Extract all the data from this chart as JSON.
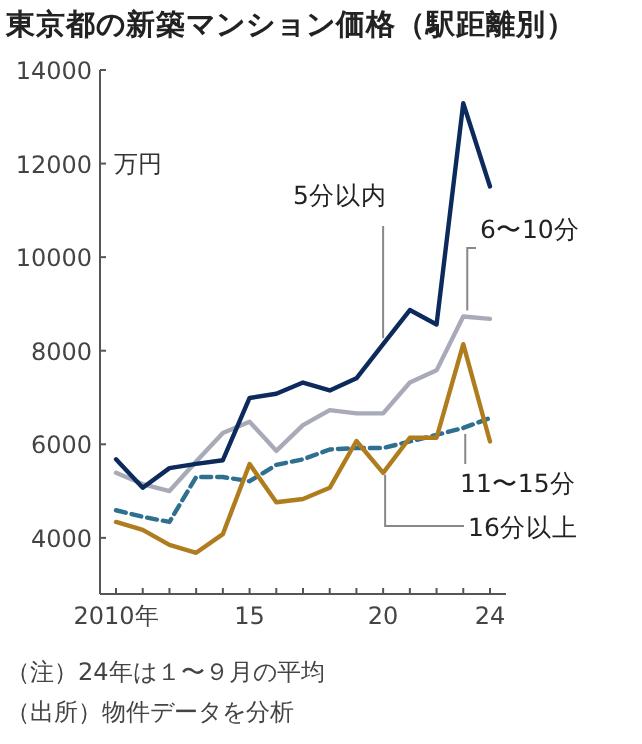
{
  "chart_data": {
    "type": "line",
    "title": "東京都の新築マンション価格（駅距離別）",
    "ylabel": "万円",
    "x": [
      2010,
      2011,
      2012,
      2013,
      2014,
      2015,
      2016,
      2017,
      2018,
      2019,
      2020,
      2021,
      2022,
      2023,
      2024
    ],
    "series": [
      {
        "name": "5分以内",
        "color": "#0d2a5c",
        "line_style": "solid",
        "values": [
          5680,
          5070,
          5490,
          5580,
          5660,
          6990,
          7080,
          7320,
          7150,
          7410,
          8140,
          8870,
          8560,
          13290,
          11510
        ]
      },
      {
        "name": "6〜10分",
        "color": "#a8aab8",
        "line_style": "solid",
        "values": [
          5390,
          5150,
          5000,
          5630,
          6240,
          6480,
          5860,
          6410,
          6730,
          6660,
          6660,
          7320,
          7580,
          8730,
          8680
        ]
      },
      {
        "name": "11〜15分",
        "color": "#2f6f8f",
        "line_style": "dashed",
        "values": [
          4590,
          4450,
          4340,
          5300,
          5300,
          5210,
          5560,
          5680,
          5890,
          5920,
          5920,
          6060,
          6200,
          6350,
          6560
        ]
      },
      {
        "name": "16分以上",
        "color": "#b07d1e",
        "line_style": "solid",
        "values": [
          4340,
          4170,
          3850,
          3680,
          4080,
          5580,
          4760,
          4830,
          5070,
          6070,
          5390,
          6140,
          6140,
          8140,
          6060
        ]
      }
    ],
    "xlim": [
      2009.4,
      2024.6
    ],
    "ylim": [
      2800,
      14000
    ],
    "xticks": [
      {
        "value": 2010,
        "label": "2010年"
      },
      {
        "value": 2011,
        "label": null
      },
      {
        "value": 2012,
        "label": null
      },
      {
        "value": 2013,
        "label": null
      },
      {
        "value": 2014,
        "label": null
      },
      {
        "value": 2015,
        "label": "15"
      },
      {
        "value": 2016,
        "label": null
      },
      {
        "value": 2017,
        "label": null
      },
      {
        "value": 2018,
        "label": null
      },
      {
        "value": 2019,
        "label": null
      },
      {
        "value": 2020,
        "label": "20"
      },
      {
        "value": 2021,
        "label": null
      },
      {
        "value": 2022,
        "label": null
      },
      {
        "value": 2023,
        "label": null
      },
      {
        "value": 2024,
        "label": "24"
      }
    ],
    "yticks": [
      4000,
      6000,
      8000,
      10000,
      12000,
      14000
    ],
    "grid": false,
    "marker": "none",
    "annotations": [
      "（注）24年は１〜９月の平均",
      "（出所）物件データを分析"
    ]
  }
}
